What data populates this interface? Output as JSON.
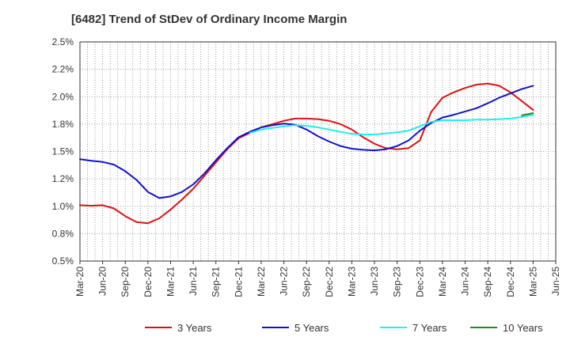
{
  "chart_data": {
    "type": "line",
    "title": "[6482]  Trend of StDev of Ordinary Income Margin",
    "xlabel": "",
    "ylabel": "",
    "x_ticks": [
      "Mar-20",
      "Jun-20",
      "Sep-20",
      "Dec-20",
      "Mar-21",
      "Jun-21",
      "Sep-21",
      "Dec-21",
      "Mar-22",
      "Jun-22",
      "Sep-22",
      "Dec-22",
      "Mar-23",
      "Jun-23",
      "Sep-23",
      "Dec-23",
      "Mar-24",
      "Jun-24",
      "Sep-24",
      "Dec-24",
      "Mar-25",
      "Jun-25"
    ],
    "y_ticks": [
      "0.5%",
      "0.8%",
      "1.0%",
      "1.2%",
      "1.5%",
      "1.8%",
      "2.0%",
      "2.2%",
      "2.5%"
    ],
    "ylim": [
      0.5,
      2.5
    ],
    "grid": true,
    "legend_position": "bottom",
    "series": [
      {
        "name": "3 Years",
        "color": "#dd1111",
        "points": [
          [
            0,
            1.01
          ],
          [
            0.5,
            1.005
          ],
          [
            1,
            1.01
          ],
          [
            1.5,
            0.98
          ],
          [
            2,
            0.91
          ],
          [
            2.5,
            0.855
          ],
          [
            3,
            0.845
          ],
          [
            3.5,
            0.89
          ],
          [
            4,
            0.97
          ],
          [
            4.5,
            1.06
          ],
          [
            5,
            1.16
          ],
          [
            5.5,
            1.28
          ],
          [
            6,
            1.4
          ],
          [
            6.5,
            1.52
          ],
          [
            7,
            1.62
          ],
          [
            7.5,
            1.67
          ],
          [
            8,
            1.72
          ],
          [
            8.5,
            1.75
          ],
          [
            9,
            1.78
          ],
          [
            9.5,
            1.8
          ],
          [
            10,
            1.8
          ],
          [
            10.5,
            1.795
          ],
          [
            11,
            1.78
          ],
          [
            11.5,
            1.75
          ],
          [
            12,
            1.7
          ],
          [
            12.5,
            1.63
          ],
          [
            13,
            1.57
          ],
          [
            13.5,
            1.53
          ],
          [
            14,
            1.52
          ],
          [
            14.5,
            1.53
          ],
          [
            15,
            1.6
          ],
          [
            15.5,
            1.86
          ],
          [
            16,
            1.99
          ],
          [
            16.5,
            2.04
          ],
          [
            17,
            2.08
          ],
          [
            17.5,
            2.11
          ],
          [
            18,
            2.12
          ],
          [
            18.5,
            2.1
          ],
          [
            19,
            2.04
          ],
          [
            19.5,
            1.96
          ],
          [
            20,
            1.88
          ]
        ]
      },
      {
        "name": "5 Years",
        "color": "#1111cc",
        "points": [
          [
            0,
            1.43
          ],
          [
            0.5,
            1.415
          ],
          [
            1,
            1.405
          ],
          [
            1.5,
            1.38
          ],
          [
            2,
            1.32
          ],
          [
            2.5,
            1.24
          ],
          [
            3,
            1.13
          ],
          [
            3.5,
            1.075
          ],
          [
            4,
            1.09
          ],
          [
            4.5,
            1.13
          ],
          [
            5,
            1.2
          ],
          [
            5.5,
            1.3
          ],
          [
            6,
            1.42
          ],
          [
            6.5,
            1.53
          ],
          [
            7,
            1.63
          ],
          [
            7.5,
            1.68
          ],
          [
            8,
            1.72
          ],
          [
            8.5,
            1.74
          ],
          [
            9,
            1.755
          ],
          [
            9.5,
            1.745
          ],
          [
            10,
            1.7
          ],
          [
            10.5,
            1.64
          ],
          [
            11,
            1.59
          ],
          [
            11.5,
            1.55
          ],
          [
            12,
            1.525
          ],
          [
            12.5,
            1.515
          ],
          [
            13,
            1.51
          ],
          [
            13.5,
            1.52
          ],
          [
            14,
            1.55
          ],
          [
            14.5,
            1.6
          ],
          [
            15,
            1.69
          ],
          [
            15.5,
            1.76
          ],
          [
            16,
            1.81
          ],
          [
            16.5,
            1.835
          ],
          [
            17,
            1.865
          ],
          [
            17.5,
            1.895
          ],
          [
            18,
            1.94
          ],
          [
            18.5,
            1.99
          ],
          [
            19,
            2.03
          ],
          [
            19.5,
            2.07
          ],
          [
            20,
            2.1
          ]
        ]
      },
      {
        "name": "7 Years",
        "color": "#22eeee",
        "points": [
          [
            7.5,
            1.67
          ],
          [
            8,
            1.7
          ],
          [
            8.5,
            1.715
          ],
          [
            9,
            1.73
          ],
          [
            9.5,
            1.74
          ],
          [
            10,
            1.735
          ],
          [
            10.5,
            1.72
          ],
          [
            11,
            1.7
          ],
          [
            11.5,
            1.68
          ],
          [
            12,
            1.66
          ],
          [
            12.5,
            1.655
          ],
          [
            13,
            1.655
          ],
          [
            13.5,
            1.665
          ],
          [
            14,
            1.675
          ],
          [
            14.5,
            1.69
          ],
          [
            15,
            1.73
          ],
          [
            15.5,
            1.77
          ],
          [
            16,
            1.785
          ],
          [
            16.5,
            1.785
          ],
          [
            17,
            1.785
          ],
          [
            17.5,
            1.79
          ],
          [
            18,
            1.79
          ],
          [
            18.5,
            1.795
          ],
          [
            19,
            1.8
          ],
          [
            19.5,
            1.815
          ],
          [
            20,
            1.835
          ]
        ]
      },
      {
        "name": "10 Years",
        "color": "#228822",
        "points": [
          [
            19.5,
            1.83
          ],
          [
            20,
            1.85
          ]
        ]
      }
    ]
  }
}
